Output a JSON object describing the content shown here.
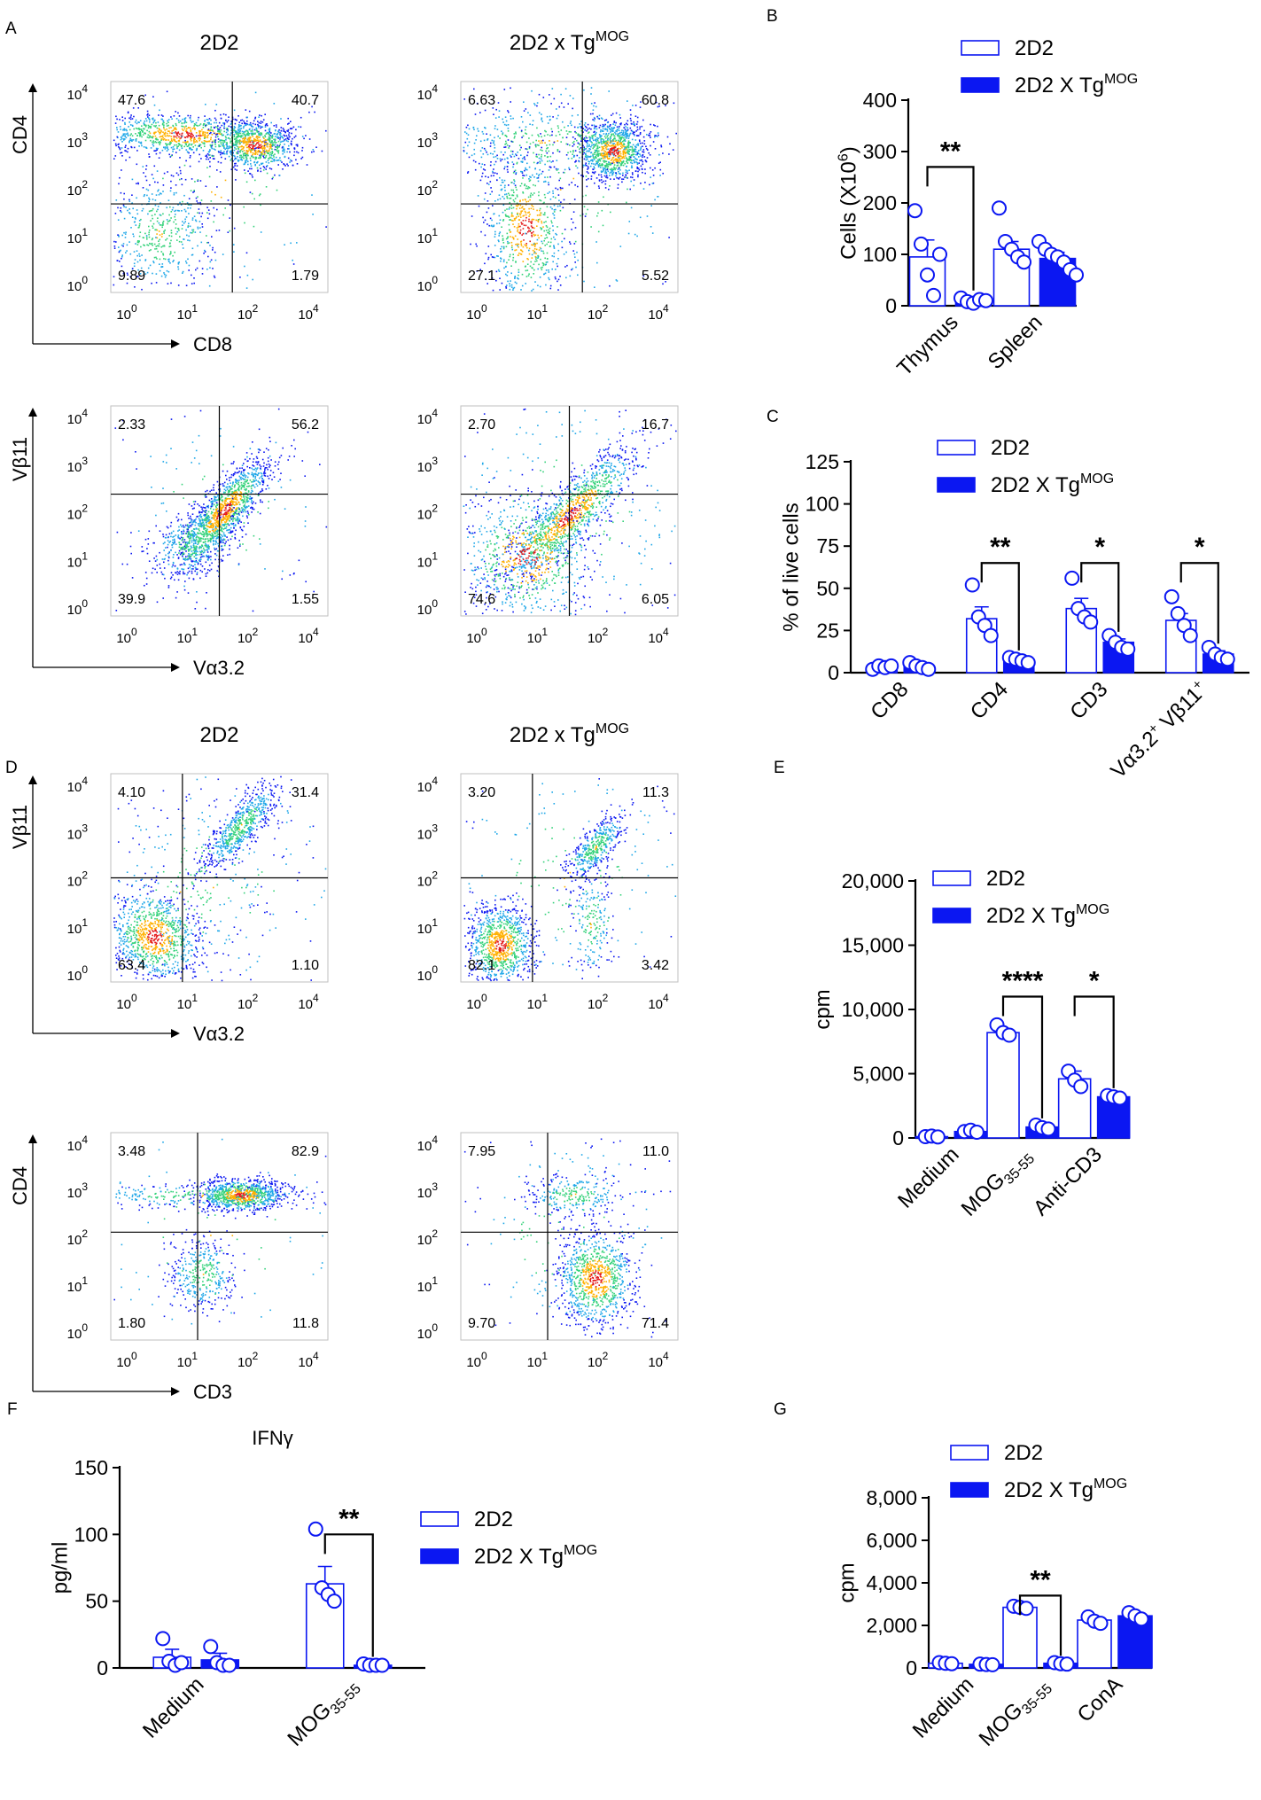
{
  "panel_letters": [
    "A",
    "B",
    "C",
    "D",
    "E",
    "F",
    "G"
  ],
  "ticks": {
    "base": "10",
    "exps": [
      "0",
      "1",
      "2",
      "3",
      "4"
    ],
    "flow_zero": "0"
  },
  "colors": {
    "blue": "#0b17f2",
    "dark": "#000000",
    "hot": "#e31a1c",
    "warm": "#ffb000",
    "mid": "#34d27a"
  },
  "flow_panels": [
    {
      "panel": "A",
      "title": "2D2",
      "title_sup": "",
      "x_label": "CD8",
      "y_label": "CD4",
      "quadrants": {
        "ul": "47.6",
        "ur": "40.7",
        "ll": "9.89",
        "lr": "1.79"
      }
    },
    {
      "panel": "A",
      "title": "2D2 x Tg",
      "title_sup": "MOG",
      "x_label": "",
      "y_label": "",
      "quadrants": {
        "ul": "6.63",
        "ur": "60.8",
        "ll": "27.1",
        "lr": "5.52"
      }
    },
    {
      "panel": "A",
      "title": "",
      "title_sup": "",
      "x_label": "Vα3.2",
      "y_label": "Vβ11",
      "quadrants": {
        "ul": "2.33",
        "ur": "56.2",
        "ll": "39.9",
        "lr": "1.55"
      }
    },
    {
      "panel": "A",
      "title": "",
      "title_sup": "",
      "x_label": "",
      "y_label": "",
      "quadrants": {
        "ul": "2.70",
        "ur": "16.7",
        "ll": "74.6",
        "lr": "6.05"
      }
    },
    {
      "panel": "D",
      "title": "2D2",
      "title_sup": "",
      "x_label": "Vα3.2",
      "y_label": "Vβ11",
      "quadrants": {
        "ul": "4.10",
        "ur": "31.4",
        "ll": "63.4",
        "lr": "1.10"
      }
    },
    {
      "panel": "D",
      "title": "2D2 x Tg",
      "title_sup": "MOG",
      "x_label": "",
      "y_label": "",
      "quadrants": {
        "ul": "3.20",
        "ur": "11.3",
        "ll": "82.1",
        "lr": "3.42"
      }
    },
    {
      "panel": "D",
      "title": "",
      "title_sup": "",
      "x_label": "CD3",
      "y_label": "CD4",
      "quadrants": {
        "ul": "3.48",
        "ur": "82.9",
        "ll": "1.80",
        "lr": "11.8"
      }
    },
    {
      "panel": "D",
      "title": "",
      "title_sup": "",
      "x_label": "",
      "y_label": "",
      "quadrants": {
        "ul": "7.95",
        "ur": "11.0",
        "ll": "9.70",
        "lr": "71.4"
      }
    }
  ],
  "chart_data": [
    {
      "panel": "B",
      "type": "bar",
      "title": "",
      "ylabel": "Cells (X10",
      "ylabel_sup": "6",
      "ylabel_end": ")",
      "ylim": [
        0,
        400
      ],
      "yticks": [
        0,
        100,
        200,
        300,
        400
      ],
      "ytick_labels": [
        "0",
        "100",
        "200",
        "300",
        "400"
      ],
      "categories": [
        "Thymus",
        "Spleen"
      ],
      "category_labels": [
        {
          "text": "Thymus",
          "sub": "",
          "sup": ""
        },
        {
          "text": "Spleen",
          "sub": "",
          "sup": ""
        }
      ],
      "legend": [
        {
          "name": "2D2",
          "sup": ""
        },
        {
          "name": "2D2 X Tg",
          "sup": "MOG"
        }
      ],
      "series": [
        {
          "name": "2D2",
          "fill": "open",
          "values": [
            95,
            110
          ],
          "error": [
            33,
            15
          ],
          "points": [
            [
              185,
              120,
              60,
              20,
              100
            ],
            [
              190,
              125,
              110,
              95,
              85
            ]
          ]
        },
        {
          "name": "2D2 X TgMOG",
          "fill": "filled",
          "values": [
            12,
            92
          ],
          "error": [
            4,
            12
          ],
          "points": [
            [
              15,
              8,
              5,
              12,
              10
            ],
            [
              125,
              110,
              100,
              95,
              85,
              70,
              60
            ]
          ]
        }
      ],
      "significance": [
        {
          "category_index": 0,
          "label": "**",
          "bracket_value": 270
        }
      ]
    },
    {
      "panel": "C",
      "type": "bar",
      "title": "",
      "ylabel": "% of live cells",
      "ylabel_sup": "",
      "ylabel_end": "",
      "ylim": [
        0,
        125
      ],
      "yticks": [
        0,
        25,
        50,
        75,
        100,
        125
      ],
      "ytick_labels": [
        "0",
        "25",
        "50",
        "75",
        "100",
        "125"
      ],
      "categories": [
        "CD8",
        "CD4",
        "CD3",
        "Vα3.2+ Vβ11+"
      ],
      "category_labels": [
        {
          "text": "CD8",
          "sub": "",
          "sup": ""
        },
        {
          "text": "CD4",
          "sub": "",
          "sup": ""
        },
        {
          "text": "CD3",
          "sub": "",
          "sup": ""
        },
        {
          "text": "Vα3.2",
          "sub": "",
          "sup": "+",
          "text2": " Vβ11",
          "sup2": "+"
        }
      ],
      "legend": [
        {
          "name": "2D2",
          "sup": ""
        },
        {
          "name": "2D2 X Tg",
          "sup": "MOG"
        }
      ],
      "series": [
        {
          "name": "2D2",
          "fill": "open",
          "values": [
            3,
            32,
            38,
            31
          ],
          "error": [
            1,
            7,
            6,
            4
          ],
          "points": [
            [
              2,
              4,
              3,
              4
            ],
            [
              52,
              33,
              28,
              22
            ],
            [
              56,
              38,
              33,
              30
            ],
            [
              45,
              35,
              28,
              22
            ]
          ]
        },
        {
          "name": "2D2 X TgMOG",
          "fill": "filled",
          "values": [
            4,
            8,
            18,
            11
          ],
          "error": [
            1,
            1,
            2,
            2
          ],
          "points": [
            [
              6,
              4,
              3,
              2
            ],
            [
              9,
              8,
              7,
              6
            ],
            [
              22,
              18,
              15,
              14
            ],
            [
              15,
              11,
              9,
              8
            ]
          ]
        }
      ],
      "significance": [
        {
          "category_index": 1,
          "label": "**",
          "bracket_value": 65
        },
        {
          "category_index": 2,
          "label": "*",
          "bracket_value": 65
        },
        {
          "category_index": 3,
          "label": "*",
          "bracket_value": 65
        }
      ]
    },
    {
      "panel": "E",
      "type": "bar",
      "title": "",
      "ylabel": "cpm",
      "ylabel_sup": "",
      "ylabel_end": "",
      "ylim": [
        0,
        20000
      ],
      "yticks": [
        0,
        5000,
        10000,
        15000,
        20000
      ],
      "ytick_labels": [
        "0",
        "5,000",
        "10,000",
        "15,000",
        "20,000"
      ],
      "categories": [
        "Medium",
        "MOG35-55",
        "Anti-CD3"
      ],
      "category_labels": [
        {
          "text": "Medium",
          "sub": "",
          "sup": ""
        },
        {
          "text": "MOG",
          "sub": "35-55",
          "sup": ""
        },
        {
          "text": "Anti-CD3",
          "sub": "",
          "sup": ""
        }
      ],
      "legend": [
        {
          "name": "2D2",
          "sup": ""
        },
        {
          "name": "2D2 X Tg",
          "sup": "MOG"
        }
      ],
      "series": [
        {
          "name": "2D2",
          "fill": "open",
          "values": [
            100,
            8200,
            4600
          ],
          "error": [
            30,
            250,
            600
          ],
          "points": [
            [
              100,
              150,
              80
            ],
            [
              8800,
              8200,
              8000
            ],
            [
              5200,
              4500,
              4000
            ]
          ]
        },
        {
          "name": "2D2 X TgMOG",
          "fill": "filled",
          "values": [
            500,
            850,
            3200
          ],
          "error": [
            60,
            120,
            120
          ],
          "points": [
            [
              500,
              600,
              450
            ],
            [
              1000,
              800,
              700
            ],
            [
              3300,
              3200,
              3100
            ]
          ]
        }
      ],
      "significance": [
        {
          "category_index": 1,
          "label": "****",
          "bracket_value": 11000
        },
        {
          "category_index": 2,
          "label": "*",
          "bracket_value": 11000
        }
      ]
    },
    {
      "panel": "F",
      "type": "bar",
      "title": "IFNγ",
      "ylabel": "pg/ml",
      "ylabel_sup": "",
      "ylabel_end": "",
      "ylim": [
        0,
        150
      ],
      "yticks": [
        0,
        50,
        100,
        150
      ],
      "ytick_labels": [
        "0",
        "50",
        "100",
        "150"
      ],
      "categories": [
        "Medium",
        "MOG35-55"
      ],
      "category_labels": [
        {
          "text": "Medium",
          "sub": "",
          "sup": ""
        },
        {
          "text": "MOG",
          "sub": "35-55",
          "sup": ""
        }
      ],
      "legend": [
        {
          "name": "2D2",
          "sup": ""
        },
        {
          "name": "2D2 X Tg",
          "sup": "MOG"
        }
      ],
      "series": [
        {
          "name": "2D2",
          "fill": "open",
          "values": [
            8,
            63
          ],
          "error": [
            6,
            13
          ],
          "points": [
            [
              22,
              5,
              2,
              4
            ],
            [
              104,
              60,
              55,
              50
            ]
          ]
        },
        {
          "name": "2D2 X TgMOG",
          "fill": "filled",
          "values": [
            6,
            2
          ],
          "error": [
            5,
            1
          ],
          "points": [
            [
              16,
              4,
              2,
              2
            ],
            [
              3,
              2,
              2,
              2
            ]
          ]
        }
      ],
      "significance": [
        {
          "category_index": 1,
          "label": "**",
          "bracket_value": 100
        }
      ]
    },
    {
      "panel": "G",
      "type": "bar",
      "title": "",
      "ylabel": "cpm",
      "ylabel_sup": "",
      "ylabel_end": "",
      "ylim": [
        0,
        8000
      ],
      "yticks": [
        0,
        2000,
        4000,
        6000,
        8000
      ],
      "ytick_labels": [
        "0",
        "2,000",
        "4,000",
        "6,000",
        "8,000"
      ],
      "categories": [
        "Medium",
        "MOG35-55",
        "ConA"
      ],
      "category_labels": [
        {
          "text": "Medium",
          "sub": "",
          "sup": ""
        },
        {
          "text": "MOG",
          "sub": "35-55",
          "sup": ""
        },
        {
          "text": "ConA",
          "sub": "",
          "sup": ""
        }
      ],
      "legend": [
        {
          "name": "2D2",
          "sup": ""
        },
        {
          "name": "2D2 X Tg",
          "sup": "MOG"
        }
      ],
      "series": [
        {
          "name": "2D2",
          "fill": "open",
          "values": [
            220,
            2850,
            2250
          ],
          "error": [
            20,
            60,
            150
          ],
          "points": [
            [
              250,
              220,
              200
            ],
            [
              2900,
              2850,
              2800
            ],
            [
              2400,
              2200,
              2100
            ]
          ]
        },
        {
          "name": "2D2 X TgMOG",
          "fill": "filled",
          "values": [
            170,
            220,
            2450
          ],
          "error": [
            20,
            20,
            150
          ],
          "points": [
            [
              180,
              160,
              150
            ],
            [
              250,
              200,
              180
            ],
            [
              2600,
              2450,
              2300
            ]
          ]
        }
      ],
      "significance": [
        {
          "category_index": 1,
          "label": "**",
          "bracket_value": 3400
        }
      ]
    }
  ]
}
